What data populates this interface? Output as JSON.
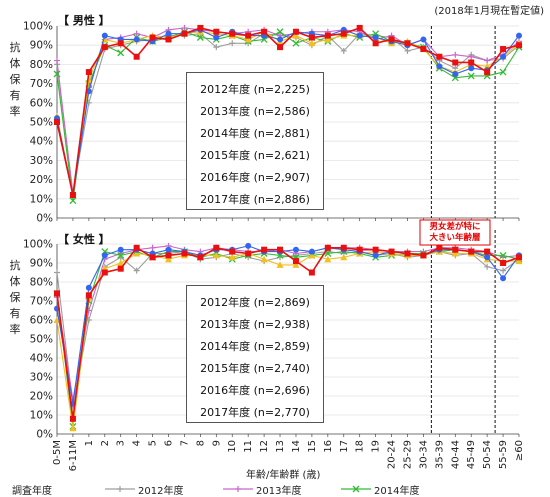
{
  "note": "(2018年1月現在暫定値)",
  "annotation": [
    "男女差が特に",
    "大きい年齢層"
  ],
  "legend_title": "調査年度",
  "chart_data": [
    {
      "type": "line",
      "title": "【 男性 】",
      "ylabel": "抗体保有率",
      "xlabel": "年齢/年齢群 (歳)",
      "ylim": [
        0,
        100
      ],
      "yticks": [
        "0%",
        "10%",
        "20%",
        "30%",
        "40%",
        "50%",
        "60%",
        "70%",
        "80%",
        "90%",
        "100%"
      ],
      "categories": [
        "0-5M",
        "6-11M",
        "1",
        "2",
        "3",
        "4",
        "5",
        "6",
        "7",
        "8",
        "9",
        "10",
        "11",
        "12",
        "13",
        "14",
        "15",
        "16",
        "17",
        "18",
        "19",
        "20-24",
        "25-29",
        "30-34",
        "35-39",
        "40-44",
        "45-49",
        "50-54",
        "55-59",
        "≥60"
      ],
      "series": [
        {
          "name": "2012年度 (n=2,225)",
          "color": "#9e9e9e",
          "marker": "plus",
          "values": [
            80,
            13,
            60,
            88,
            90,
            92,
            93,
            95,
            95,
            96,
            89,
            91,
            91,
            96,
            95,
            94,
            90,
            95,
            87,
            96,
            95,
            94,
            87,
            89,
            82,
            78,
            85,
            82,
            83,
            90
          ]
        },
        {
          "name": "2013年度 (n=2,586)",
          "color": "#cc66cc",
          "marker": "plus",
          "values": [
            82,
            12,
            68,
            93,
            94,
            96,
            94,
            98,
            99,
            98,
            97,
            96,
            97,
            98,
            95,
            96,
            97,
            97,
            98,
            97,
            93,
            95,
            90,
            93,
            84,
            85,
            84,
            82,
            85,
            92
          ]
        },
        {
          "name": "2014年度 (n=2,881)",
          "color": "#33bb33",
          "marker": "x",
          "values": [
            75,
            9,
            70,
            90,
            86,
            94,
            92,
            94,
            97,
            94,
            93,
            95,
            92,
            93,
            97,
            91,
            94,
            92,
            96,
            94,
            96,
            92,
            91,
            89,
            78,
            73,
            74,
            74,
            76,
            89
          ]
        },
        {
          "name": "2015年度 (n=2,621)",
          "color": "#f0c020",
          "marker": "triangle",
          "values": [
            53,
            12,
            72,
            93,
            91,
            93,
            95,
            94,
            96,
            97,
            96,
            95,
            93,
            97,
            92,
            95,
            91,
            93,
            95,
            95,
            94,
            91,
            92,
            88,
            79,
            76,
            80,
            79,
            84,
            91
          ]
        },
        {
          "name": "2016年度 (n=2,907)",
          "color": "#3366ee",
          "marker": "circle",
          "values": [
            52,
            12,
            66,
            95,
            93,
            93,
            92,
            96,
            96,
            98,
            94,
            97,
            95,
            95,
            93,
            97,
            96,
            95,
            98,
            95,
            94,
            92,
            90,
            93,
            79,
            75,
            78,
            77,
            84,
            95
          ]
        },
        {
          "name": "2017年度 (n=2,886)",
          "color": "#e81010",
          "marker": "square",
          "values": [
            50,
            12,
            76,
            89,
            91,
            84,
            94,
            93,
            96,
            99,
            97,
            96,
            95,
            97,
            89,
            97,
            94,
            95,
            96,
            99,
            91,
            93,
            91,
            88,
            84,
            81,
            81,
            76,
            88,
            90
          ]
        }
      ]
    },
    {
      "type": "line",
      "title": "【 女性 】",
      "ylabel": "抗体保有率",
      "xlabel": "年齢/年齢群 (歳)",
      "ylim": [
        0,
        100
      ],
      "yticks": [
        "0%",
        "10%",
        "20%",
        "30%",
        "40%",
        "50%",
        "60%",
        "70%",
        "80%",
        "90%",
        "100%"
      ],
      "categories": [
        "0-5M",
        "6-11M",
        "1",
        "2",
        "3",
        "4",
        "5",
        "6",
        "7",
        "8",
        "9",
        "10",
        "11",
        "12",
        "13",
        "14",
        "15",
        "16",
        "17",
        "18",
        "19",
        "20-24",
        "25-29",
        "30-34",
        "35-39",
        "40-44",
        "45-49",
        "50-54",
        "55-59",
        "≥60"
      ],
      "series": [
        {
          "name": "2012年度 (n=2,869)",
          "color": "#9e9e9e",
          "marker": "plus",
          "values": [
            85,
            15,
            60,
            88,
            93,
            86,
            95,
            95,
            96,
            92,
            93,
            95,
            93,
            91,
            93,
            94,
            95,
            96,
            95,
            96,
            94,
            95,
            93,
            94,
            96,
            94,
            95,
            88,
            86,
            92
          ]
        },
        {
          "name": "2013年度 (n=2,938)",
          "color": "#cc66cc",
          "marker": "plus",
          "values": [
            72,
            18,
            65,
            92,
            95,
            97,
            98,
            99,
            97,
            96,
            98,
            97,
            96,
            96,
            97,
            95,
            96,
            98,
            98,
            98,
            97,
            96,
            96,
            96,
            98,
            98,
            97,
            96,
            93,
            94
          ]
        },
        {
          "name": "2014年度 (n=2,859)",
          "color": "#33bb33",
          "marker": "x",
          "values": [
            74,
            4,
            70,
            96,
            94,
            96,
            93,
            96,
            96,
            93,
            95,
            92,
            94,
            95,
            94,
            93,
            94,
            95,
            96,
            95,
            93,
            94,
            95,
            95,
            96,
            97,
            96,
            94,
            94,
            92
          ]
        },
        {
          "name": "2015年度 (n=2,740)",
          "color": "#f0c020",
          "marker": "triangle",
          "values": [
            60,
            3,
            72,
            87,
            90,
            95,
            94,
            92,
            94,
            94,
            94,
            93,
            95,
            92,
            89,
            89,
            94,
            92,
            93,
            95,
            96,
            95,
            94,
            94,
            96,
            95,
            95,
            92,
            91,
            91
          ]
        },
        {
          "name": "2016年度 (n=2,696)",
          "color": "#3366ee",
          "marker": "circle",
          "values": [
            66,
            16,
            77,
            94,
            97,
            97,
            95,
            97,
            96,
            94,
            97,
            97,
            99,
            96,
            96,
            97,
            96,
            98,
            97,
            96,
            94,
            96,
            95,
            94,
            97,
            97,
            96,
            93,
            82,
            94
          ]
        },
        {
          "name": "2017年度 (n=2,770)",
          "color": "#e81010",
          "marker": "square",
          "values": [
            74,
            8,
            73,
            85,
            87,
            98,
            93,
            94,
            95,
            93,
            98,
            96,
            95,
            97,
            97,
            91,
            85,
            98,
            98,
            97,
            97,
            96,
            95,
            94,
            98,
            97,
            96,
            96,
            90,
            93
          ]
        }
      ]
    }
  ]
}
